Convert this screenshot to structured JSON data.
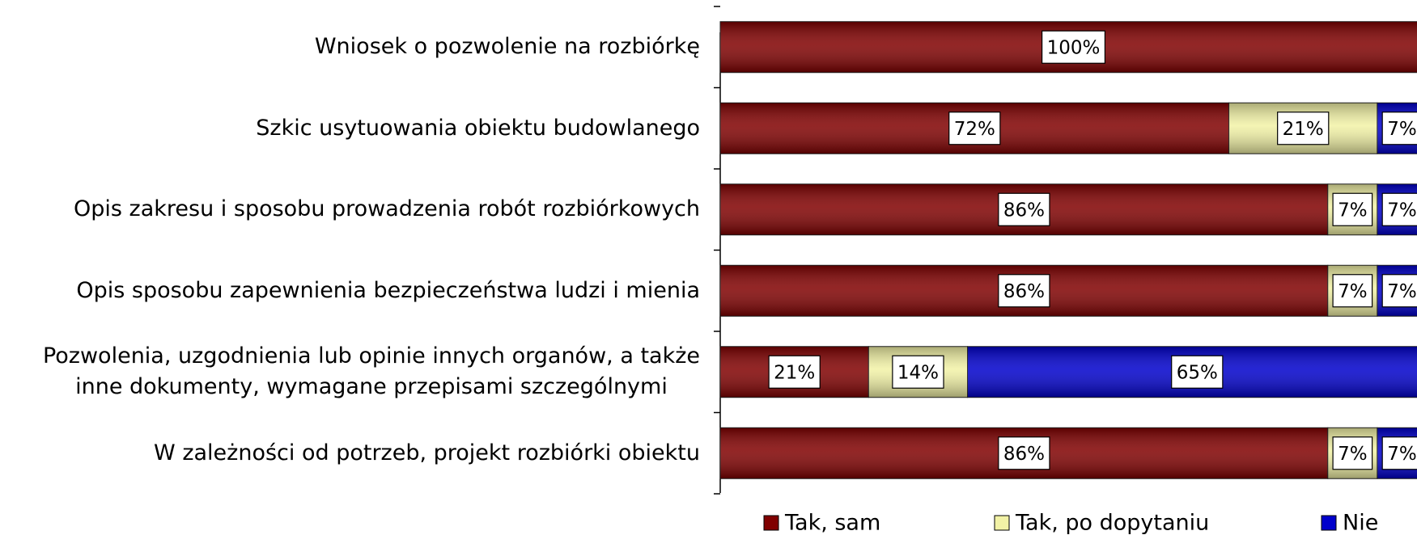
{
  "chart_data": {
    "type": "stacked_bar_horizontal",
    "categories": [
      "Wniosek o pozwolenie na rozbiórkę",
      "Szkic usytuowania obiektu budowlanego",
      "Opis zakresu i sposobu prowadzenia robót rozbiórkowych",
      "Opis sposobu zapewnienia bezpieczeństwa ludzi i mienia",
      "Pozwolenia, uzgodnienia lub opinie innych organów, a także\ninne dokumenty, wymagane przepisami szczególnymi",
      "W zależności od potrzeb, projekt rozbiórki obiektu"
    ],
    "series": [
      {
        "name": "Tak, sam",
        "color": "#800000",
        "values": [
          100,
          72,
          86,
          86,
          21,
          86
        ],
        "value_labels": [
          "100%",
          "72%",
          "86%",
          "86%",
          "21%",
          "86%"
        ]
      },
      {
        "name": "Tak, po dopytaniu",
        "color": "#f2f2a6",
        "values": [
          0,
          21,
          7,
          7,
          14,
          7
        ],
        "value_labels": [
          null,
          "21%",
          "7%",
          "7%",
          "14%",
          "7%"
        ]
      },
      {
        "name": "Nie",
        "color": "#0000cc",
        "values": [
          0,
          7,
          7,
          7,
          65,
          7
        ],
        "value_labels": [
          null,
          "7%",
          "7%",
          "7%",
          "65%",
          "7%"
        ]
      }
    ],
    "xlim": [
      0,
      100
    ],
    "legend": "bottom"
  }
}
